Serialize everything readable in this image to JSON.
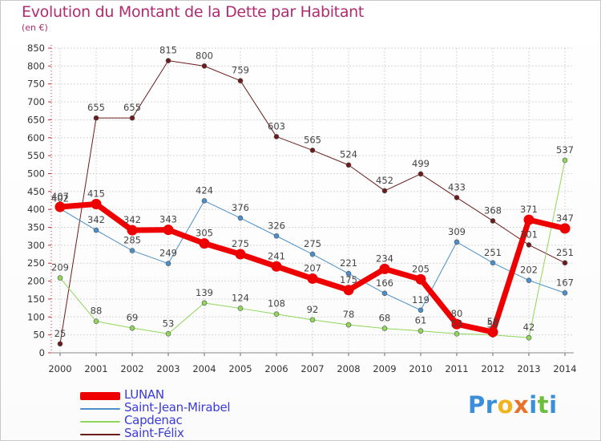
{
  "title": "Evolution du Montant de la Dette par Habitant",
  "unit_label": "(en €)",
  "brand": {
    "letters": [
      {
        "ch": "P",
        "color": "#3a8fd8"
      },
      {
        "ch": "r",
        "color": "#3a8fd8"
      },
      {
        "ch": "o",
        "color": "#f0b41e"
      },
      {
        "ch": "x",
        "color": "#e8702a"
      },
      {
        "ch": "i",
        "color": "#3a8fd8"
      },
      {
        "ch": "t",
        "color": "#6cbf3c"
      },
      {
        "ch": "i",
        "color": "#3a8fd8"
      }
    ]
  },
  "chart_data": {
    "type": "line",
    "x": [
      "2000",
      "2001",
      "2002",
      "2003",
      "2004",
      "2005",
      "2006",
      "2007",
      "2008",
      "2009",
      "2010",
      "2011",
      "2012",
      "2013",
      "2014"
    ],
    "ylim": [
      0,
      850
    ],
    "yticks": [
      0,
      50,
      100,
      150,
      200,
      250,
      300,
      350,
      400,
      450,
      500,
      550,
      600,
      650,
      700,
      750,
      800,
      850
    ],
    "grid": true,
    "series": [
      {
        "name": "LUNAN",
        "color": "#ee0000",
        "width": 7,
        "values": [
          407,
          415,
          342,
          343,
          305,
          275,
          241,
          207,
          175,
          234,
          205,
          80,
          58,
          371,
          347
        ]
      },
      {
        "name": "Saint-Jean-Mirabel",
        "color": "#4a8fc9",
        "width": 1,
        "values": [
          402,
          342,
          285,
          249,
          424,
          376,
          326,
          275,
          221,
          166,
          119,
          309,
          251,
          202,
          167
        ]
      },
      {
        "name": "Capdenac",
        "color": "#8fd65a",
        "width": 1,
        "values": [
          209,
          88,
          69,
          53,
          139,
          124,
          108,
          92,
          78,
          68,
          61,
          53,
          50,
          42,
          537
        ]
      },
      {
        "name": "Saint-Félix",
        "color": "#6b1b1b",
        "width": 1,
        "values": [
          25,
          655,
          655,
          815,
          800,
          759,
          603,
          565,
          524,
          452,
          499,
          433,
          368,
          301,
          251
        ]
      }
    ]
  }
}
